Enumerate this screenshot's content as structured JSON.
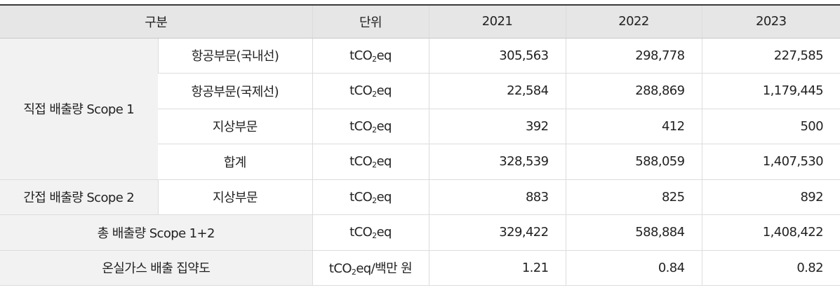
{
  "headers": [
    "구분",
    "단위",
    "2021",
    "2022",
    "2023"
  ],
  "unit_prefix": "tCO",
  "unit_sub": "2",
  "unit_suffix": "eq",
  "groups": {
    "direct": "직접 배출량 Scope 1",
    "indirect": "간접 배출량 Scope 2",
    "total": "총 배출량 Scope 1+2",
    "intensity": "온실가스 배출 집약도"
  },
  "rows": [
    {
      "sub": "항공부문(국내선)",
      "values": [
        "305,563",
        "298,778",
        "227,585"
      ]
    },
    {
      "sub": "항공부문(국제선)",
      "values": [
        "22,584",
        "288,869",
        "1,179,445"
      ]
    },
    {
      "sub": "지상부문",
      "values": [
        "392",
        "412",
        "500"
      ]
    },
    {
      "sub": "합계",
      "values": [
        "328,539",
        "588,059",
        "1,407,530"
      ]
    },
    {
      "sub": "지상부문",
      "values": [
        "883",
        "825",
        "892"
      ]
    },
    {
      "values": [
        "329,422",
        "588,884",
        "1,408,422"
      ]
    },
    {
      "unit_extra": "/백만 원",
      "values": [
        "1.21",
        "0.84",
        "0.82"
      ]
    }
  ]
}
